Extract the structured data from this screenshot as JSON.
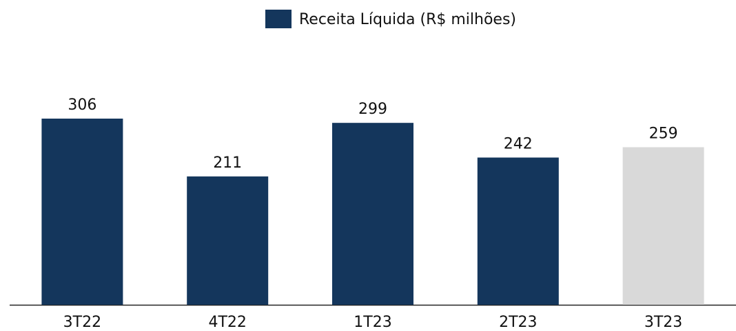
{
  "chart_data": {
    "type": "bar",
    "categories": [
      "3T22",
      "4T22",
      "1T23",
      "2T23",
      "3T23"
    ],
    "series": [
      {
        "name": "Receita Líquida (R$ milhões)",
        "color": "#14365c",
        "values": [
          306,
          211,
          299,
          242,
          259
        ],
        "colors": [
          "#14365c",
          "#14365c",
          "#14365c",
          "#14365c",
          "#d9d9d9"
        ]
      }
    ],
    "legend": "top"
  }
}
